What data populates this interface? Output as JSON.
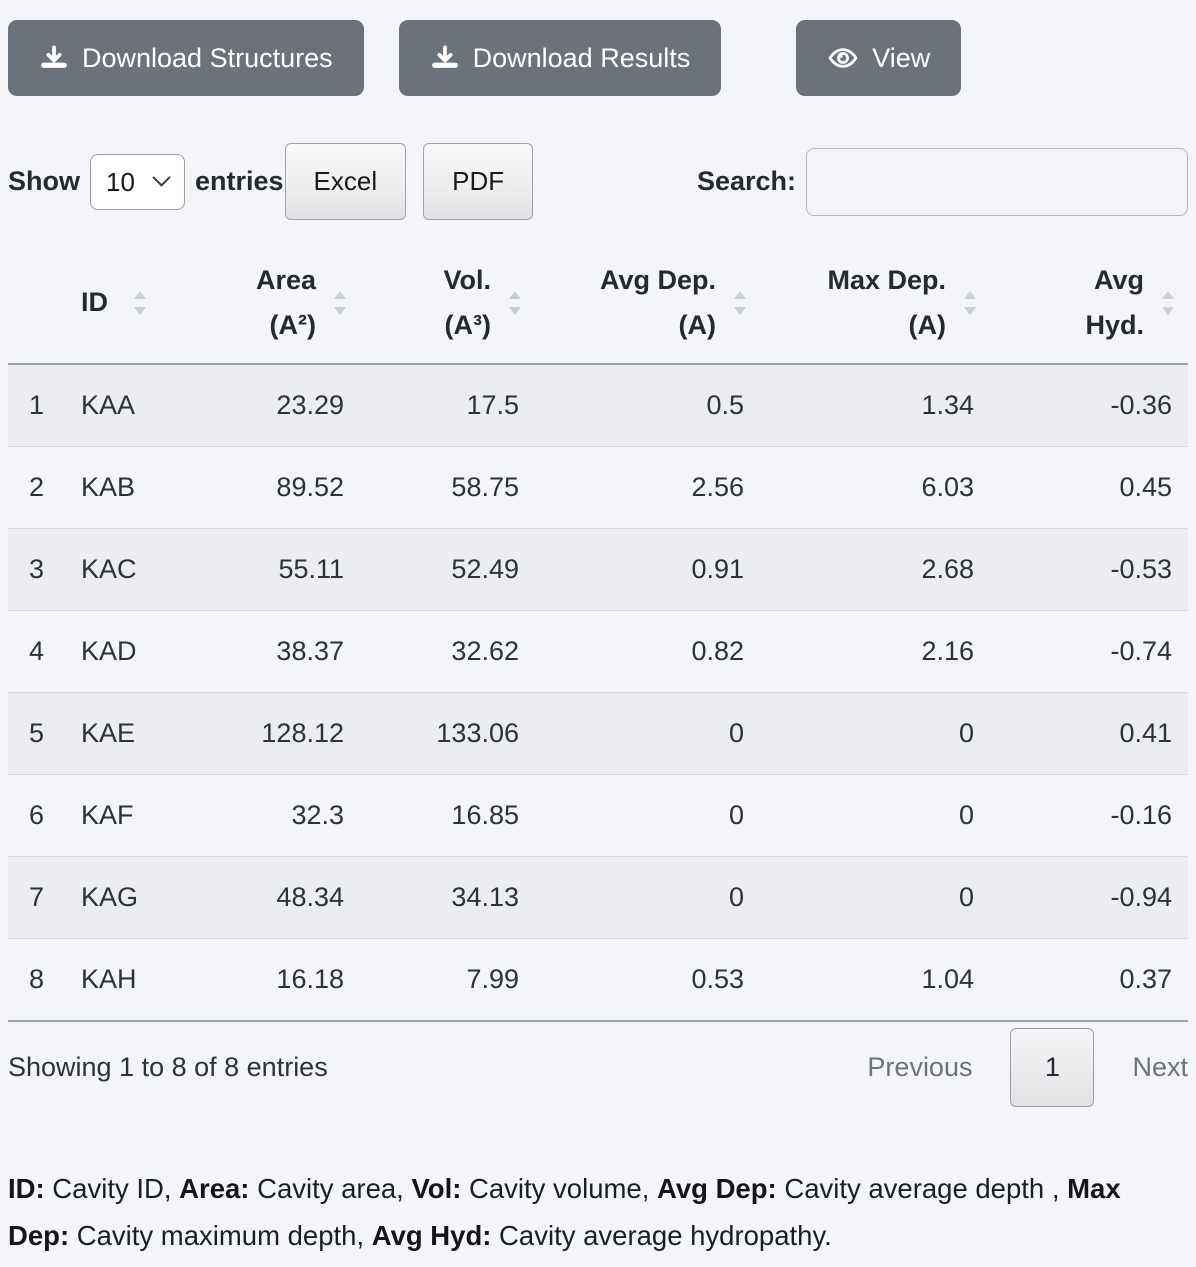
{
  "colors": {
    "button_gray": "#6b727a",
    "stripe": "#ecedf0"
  },
  "toolbar": {
    "download_structures": "Download Structures",
    "download_results": "Download Results",
    "view": "View"
  },
  "controls": {
    "show_label": "Show",
    "page_length": "10",
    "entries_label": "entries",
    "export_buttons": {
      "excel": "Excel",
      "pdf": "PDF"
    },
    "search_label": "Search:",
    "search_value": ""
  },
  "table": {
    "columns": [
      {
        "name": "index",
        "lines": [
          ""
        ],
        "sortable": false
      },
      {
        "name": "id",
        "lines": [
          "ID"
        ],
        "sortable": true
      },
      {
        "name": "area",
        "lines": [
          "Area",
          "(A²)"
        ],
        "sortable": true
      },
      {
        "name": "vol",
        "lines": [
          "Vol.",
          "(A³)"
        ],
        "sortable": true
      },
      {
        "name": "avg-dep",
        "lines": [
          "Avg Dep.",
          "(A)"
        ],
        "sortable": true
      },
      {
        "name": "max-dep",
        "lines": [
          "Max Dep.",
          "(A)"
        ],
        "sortable": true
      },
      {
        "name": "avg-hyd",
        "lines": [
          "Avg",
          "Hyd."
        ],
        "sortable": true
      }
    ],
    "rows": [
      [
        "1",
        "KAA",
        "23.29",
        "17.5",
        "0.5",
        "1.34",
        "-0.36"
      ],
      [
        "2",
        "KAB",
        "89.52",
        "58.75",
        "2.56",
        "6.03",
        "0.45"
      ],
      [
        "3",
        "KAC",
        "55.11",
        "52.49",
        "0.91",
        "2.68",
        "-0.53"
      ],
      [
        "4",
        "KAD",
        "38.37",
        "32.62",
        "0.82",
        "2.16",
        "-0.74"
      ],
      [
        "5",
        "KAE",
        "128.12",
        "133.06",
        "0",
        "0",
        "0.41"
      ],
      [
        "6",
        "KAF",
        "32.3",
        "16.85",
        "0",
        "0",
        "-0.16"
      ],
      [
        "7",
        "KAG",
        "48.34",
        "34.13",
        "0",
        "0",
        "-0.94"
      ],
      [
        "8",
        "KAH",
        "16.18",
        "7.99",
        "0.53",
        "1.04",
        "0.37"
      ]
    ]
  },
  "footer": {
    "info": "Showing 1 to 8 of 8 entries",
    "previous": "Previous",
    "current_page": "1",
    "next": "Next"
  },
  "legend": {
    "segments": [
      {
        "label": "ID:",
        "text": " Cavity ID, "
      },
      {
        "label": "Area:",
        "text": " Cavity area, "
      },
      {
        "label": "Vol:",
        "text": " Cavity volume, "
      },
      {
        "label": "Avg Dep:",
        "text": " Cavity average depth , "
      },
      {
        "label": "Max Dep:",
        "text": " Cavity maximum depth, "
      },
      {
        "label": "Avg Hyd:",
        "text": " Cavity average hydropathy."
      }
    ]
  }
}
